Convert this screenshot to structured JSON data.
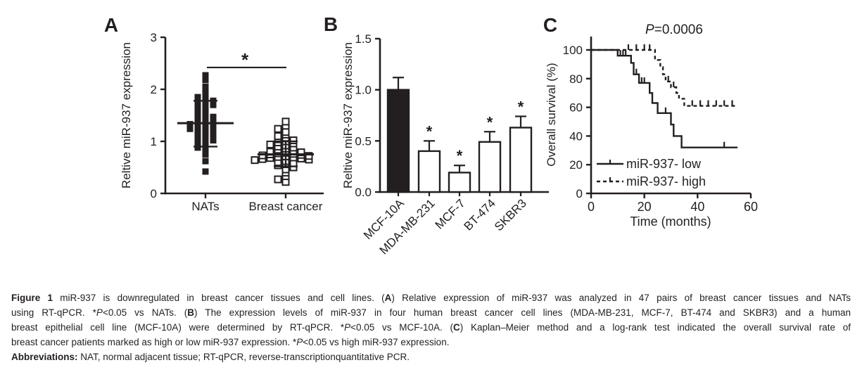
{
  "colors": {
    "ink": "#231f20",
    "background": "#ffffff"
  },
  "figure": {
    "panel_letters": [
      "A",
      "B",
      "C"
    ]
  },
  "chart_data": [
    {
      "panel": "A",
      "type": "scatter",
      "ylabel": "Reltive miR-937 expression",
      "ylim": [
        0,
        3
      ],
      "yticks": [
        0,
        1,
        2,
        3
      ],
      "ytick_labels": [
        "0",
        "1",
        "2",
        "3"
      ],
      "categories": [
        "NATs",
        "Breast cancer"
      ],
      "significance": {
        "label": "*",
        "y_value": 2.42
      },
      "groups": [
        {
          "name": "NATs",
          "marker": "filled-square",
          "mean": 1.35,
          "whisker_low": 0.9,
          "whisker_high": 1.78,
          "values": [
            2.27,
            2.18,
            2.05,
            1.95,
            1.9,
            1.85,
            1.82,
            1.8,
            1.78,
            1.75,
            1.72,
            1.7,
            1.65,
            1.62,
            1.58,
            1.55,
            1.52,
            1.5,
            1.47,
            1.45,
            1.42,
            1.4,
            1.38,
            1.36,
            1.35,
            1.33,
            1.3,
            1.28,
            1.26,
            1.24,
            1.22,
            1.2,
            1.18,
            1.15,
            1.12,
            1.1,
            1.08,
            1.05,
            1.02,
            1.0,
            0.97,
            0.93,
            0.88,
            0.82,
            0.75,
            0.62,
            0.42
          ]
        },
        {
          "name": "Breast cancer",
          "marker": "open-square",
          "mean": 0.75,
          "whisker_low": 0.52,
          "whisker_high": 1.0,
          "values": [
            1.38,
            1.3,
            1.24,
            1.18,
            1.13,
            1.1,
            1.07,
            1.04,
            1.02,
            1.0,
            0.98,
            0.96,
            0.94,
            0.92,
            0.9,
            0.88,
            0.86,
            0.84,
            0.82,
            0.8,
            0.79,
            0.78,
            0.77,
            0.76,
            0.75,
            0.74,
            0.73,
            0.72,
            0.71,
            0.7,
            0.69,
            0.68,
            0.67,
            0.66,
            0.65,
            0.64,
            0.62,
            0.6,
            0.58,
            0.56,
            0.54,
            0.5,
            0.46,
            0.4,
            0.33,
            0.27,
            0.22
          ]
        }
      ]
    },
    {
      "panel": "B",
      "type": "bar",
      "ylabel": "Reltive miR-937 expression",
      "ylim": [
        0,
        1.5
      ],
      "yticks": [
        0,
        0.5,
        1,
        1.5
      ],
      "ytick_labels": [
        "0.0",
        "0.5",
        "1.0",
        "1.5"
      ],
      "categories": [
        "MCF-10A",
        "MDA-MB-231",
        "MCF-7",
        "BT-474",
        "SKBR3"
      ],
      "values": [
        1.0,
        0.4,
        0.19,
        0.49,
        0.63
      ],
      "errors": [
        0.12,
        0.1,
        0.07,
        0.1,
        0.11
      ],
      "bar_fill": [
        "black",
        "white",
        "white",
        "white",
        "white"
      ],
      "significance": [
        "",
        "*",
        "*",
        "*",
        "*"
      ]
    },
    {
      "panel": "C",
      "type": "line",
      "subtype": "kaplan-meier",
      "title": "P=0.0006",
      "title_segments": [
        {
          "t": "P",
          "i": true
        },
        {
          "t": "=0.0006"
        }
      ],
      "xlabel": "Time (months)",
      "ylabel": "Overall survival (%)",
      "xlim": [
        0,
        60
      ],
      "ylim": [
        0,
        100
      ],
      "xticks": [
        0,
        20,
        40,
        60
      ],
      "xtick_labels": [
        "0",
        "20",
        "40",
        "60"
      ],
      "yticks": [
        0,
        20,
        40,
        60,
        80,
        100
      ],
      "ytick_labels": [
        "0",
        "20",
        "40",
        "60",
        "80",
        "100"
      ],
      "legend_position": "lower-left",
      "series": [
        {
          "name": "miR-937- low",
          "line": "solid",
          "points": [
            [
              0,
              100
            ],
            [
              10,
              100
            ],
            [
              10,
              96
            ],
            [
              15,
              96
            ],
            [
              15,
              91
            ],
            [
              16,
              91
            ],
            [
              16,
              83
            ],
            [
              18,
              83
            ],
            [
              18,
              77
            ],
            [
              22,
              77
            ],
            [
              22,
              70
            ],
            [
              23,
              70
            ],
            [
              23,
              63
            ],
            [
              25,
              63
            ],
            [
              25,
              56
            ],
            [
              30,
              56
            ],
            [
              30,
              48
            ],
            [
              31,
              48
            ],
            [
              31,
              40
            ],
            [
              34,
              40
            ],
            [
              34,
              32
            ],
            [
              55,
              32
            ]
          ],
          "censor_marks": [
            [
              11,
              96
            ],
            [
              12,
              96
            ],
            [
              13,
              96
            ],
            [
              17,
              83
            ],
            [
              19,
              77
            ],
            [
              20,
              77
            ],
            [
              28,
              56
            ],
            [
              50,
              32
            ]
          ]
        },
        {
          "name": "miR-937- high",
          "line": "dashed",
          "points": [
            [
              0,
              100
            ],
            [
              24,
              100
            ],
            [
              24,
              93
            ],
            [
              26,
              93
            ],
            [
              26,
              88
            ],
            [
              27,
              88
            ],
            [
              27,
              83
            ],
            [
              28,
              83
            ],
            [
              28,
              78
            ],
            [
              30,
              78
            ],
            [
              30,
              74
            ],
            [
              32,
              74
            ],
            [
              32,
              70
            ],
            [
              33,
              70
            ],
            [
              33,
              66
            ],
            [
              35,
              66
            ],
            [
              35,
              61
            ],
            [
              55,
              61
            ]
          ],
          "censor_marks": [
            [
              14,
              100
            ],
            [
              17,
              100
            ],
            [
              20,
              100
            ],
            [
              22,
              100
            ],
            [
              29,
              78
            ],
            [
              31,
              74
            ],
            [
              38,
              61
            ],
            [
              41,
              61
            ],
            [
              44,
              61
            ],
            [
              47,
              61
            ],
            [
              50,
              61
            ],
            [
              53,
              61
            ]
          ]
        }
      ]
    }
  ],
  "caption": {
    "lines": [
      {
        "justify": true,
        "segments": [
          {
            "t": "Figure 1 ",
            "b": true
          },
          {
            "t": "miR-937 is downregulated in breast cancer tissues and cell lines. ("
          },
          {
            "t": "A",
            "b": true
          },
          {
            "t": ") Relative expression of miR-937 was analyzed in 47 pairs of breast cancer tissues and NATs"
          }
        ]
      },
      {
        "justify": true,
        "segments": [
          {
            "t": "using RT-qPCR. *"
          },
          {
            "t": "P",
            "i": true
          },
          {
            "t": "<0.05 vs NATs. ("
          },
          {
            "t": "B",
            "b": true
          },
          {
            "t": ") The expression levels of miR-937 in four human breast cancer cell lines (MDA-MB-231, MCF-7, BT-474 and SKBR3) and a human"
          }
        ]
      },
      {
        "justify": true,
        "segments": [
          {
            "t": "breast epithelial cell line (MCF-10A) were determined by RT-qPCR. *"
          },
          {
            "t": "P",
            "i": true
          },
          {
            "t": "<0.05 vs MCF-10A. ("
          },
          {
            "t": "C",
            "b": true
          },
          {
            "t": ") Kaplan–Meier method and a log-rank test indicated the overall survival rate of"
          }
        ]
      },
      {
        "justify": false,
        "segments": [
          {
            "t": "breast cancer patients marked as high or low miR-937 expression. *"
          },
          {
            "t": "P",
            "i": true
          },
          {
            "t": "<0.05 vs high miR-937 expression."
          }
        ]
      },
      {
        "justify": false,
        "segments": [
          {
            "t": "Abbreviations: ",
            "b": true
          },
          {
            "t": "NAT, normal adjacent tissue; RT-qPCR, reverse-transcriptionquantitative PCR."
          }
        ]
      }
    ]
  }
}
